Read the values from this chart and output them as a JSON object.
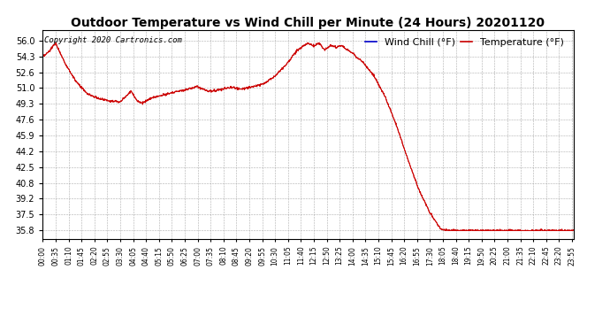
{
  "title": "Outdoor Temperature vs Wind Chill per Minute (24 Hours) 20201120",
  "copyright": "Copyright 2020 Cartronics.com",
  "legend_wind_chill": "Wind Chill (°F)",
  "legend_temperature": "Temperature (°F)",
  "legend_wind_chill_color": "#0000cc",
  "legend_temperature_color": "#cc0000",
  "line_color": "#cc0000",
  "background_color": "#ffffff",
  "grid_color": "#999999",
  "yticks": [
    35.8,
    37.5,
    39.2,
    40.8,
    42.5,
    44.2,
    45.9,
    47.6,
    49.3,
    51.0,
    52.6,
    54.3,
    56.0
  ],
  "ylim": [
    34.9,
    57.2
  ],
  "title_fontsize": 10,
  "copyright_fontsize": 6.5,
  "legend_fontsize": 8,
  "ytick_fontsize": 7,
  "xtick_fontsize": 5.5,
  "figsize": [
    6.9,
    3.75
  ],
  "dpi": 100
}
